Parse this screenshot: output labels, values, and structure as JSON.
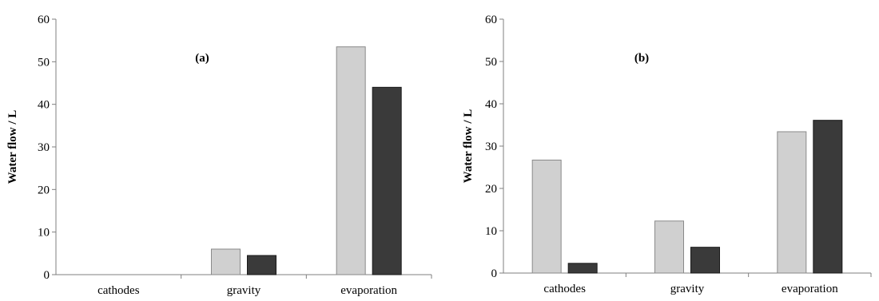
{
  "chart_data": [
    {
      "type": "bar",
      "annotation": "(a)",
      "title": "",
      "xlabel": "",
      "ylabel": "Water flow / L",
      "ylim": [
        0,
        60
      ],
      "yticks": [
        0,
        10,
        20,
        30,
        40,
        50,
        60
      ],
      "grid": false,
      "categories": [
        "cathodes",
        "gravity",
        "evaporation"
      ],
      "series": [
        {
          "values": [
            0,
            6,
            53.5
          ],
          "color": "#d0d0d0"
        },
        {
          "values": [
            0,
            4.5,
            44
          ],
          "color": "#3a3a3a"
        }
      ]
    },
    {
      "type": "bar",
      "annotation": "(b)",
      "title": "",
      "xlabel": "",
      "ylabel": "Water flow / L",
      "ylim": [
        0,
        60
      ],
      "yticks": [
        0,
        10,
        20,
        30,
        40,
        50,
        60
      ],
      "grid": false,
      "categories": [
        "cathodes",
        "gravity",
        "evaporation"
      ],
      "series": [
        {
          "values": [
            26.7,
            12.3,
            33.4
          ],
          "color": "#d0d0d0"
        },
        {
          "values": [
            2.3,
            6.1,
            36.1
          ],
          "color": "#3a3a3a"
        }
      ]
    }
  ]
}
